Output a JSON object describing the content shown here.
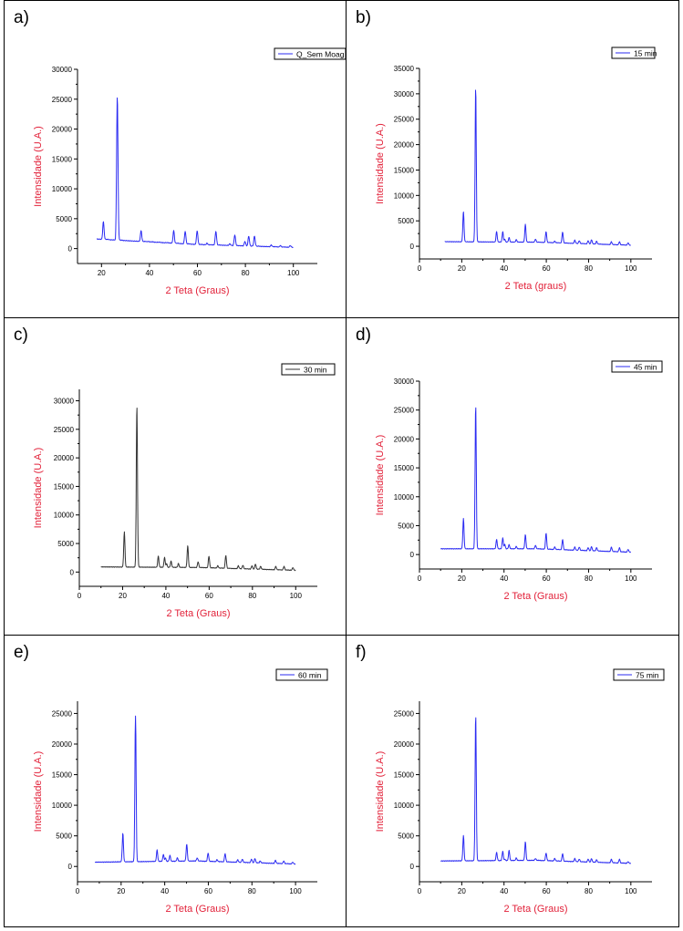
{
  "colors": {
    "blue": "#2b2bf2",
    "gray": "#333333",
    "axis_label": "#e2223a",
    "axis": "#000000"
  },
  "chart_data": [
    {
      "panel_label": "a)",
      "type": "line",
      "legend": "Q_Sem Moag",
      "color": "blue",
      "xlabel": "2 Teta (Graus)",
      "ylabel": "Intensidade (U.A.)",
      "xlim": [
        10,
        110
      ],
      "xticks": [
        20,
        40,
        60,
        80,
        100
      ],
      "ylim": [
        -2500,
        30000
      ],
      "yticks": [
        0,
        5000,
        10000,
        15000,
        20000,
        25000,
        30000
      ],
      "x_start": 18,
      "x_end": 100,
      "bg_start": 1600,
      "bg_mid": 700,
      "bg_end": 200,
      "peaks": [
        [
          20.8,
          4500
        ],
        [
          26.6,
          25600
        ],
        [
          36.5,
          3000
        ],
        [
          39.5,
          1200
        ],
        [
          42.4,
          900
        ],
        [
          45.8,
          800
        ],
        [
          50.1,
          3000
        ],
        [
          54.9,
          2900
        ],
        [
          59.9,
          3000
        ],
        [
          64.0,
          900
        ],
        [
          67.7,
          2900
        ],
        [
          73.5,
          800
        ],
        [
          75.6,
          2300
        ],
        [
          79.8,
          1200
        ],
        [
          81.4,
          2100
        ],
        [
          83.8,
          2100
        ],
        [
          90.8,
          600
        ],
        [
          94.6,
          500
        ],
        [
          98.7,
          500
        ]
      ]
    },
    {
      "panel_label": "b)",
      "type": "line",
      "legend": "15 min",
      "color": "blue",
      "xlabel": "2 Teta (graus)",
      "ylabel": "Intensidade (U.A.)",
      "xlim": [
        0,
        110
      ],
      "xticks": [
        0,
        20,
        40,
        60,
        80,
        100
      ],
      "ylim": [
        -2500,
        35000
      ],
      "yticks": [
        0,
        5000,
        10000,
        15000,
        20000,
        25000,
        30000,
        35000
      ],
      "x_start": 12,
      "x_end": 100,
      "bg_start": 900,
      "bg_mid": 800,
      "bg_end": 200,
      "peaks": [
        [
          20.8,
          6800
        ],
        [
          26.6,
          31200
        ],
        [
          36.5,
          2900
        ],
        [
          39.4,
          2900
        ],
        [
          40.3,
          1400
        ],
        [
          42.4,
          1700
        ],
        [
          45.8,
          1300
        ],
        [
          50.1,
          4300
        ],
        [
          54.9,
          1400
        ],
        [
          59.9,
          2900
        ],
        [
          64.0,
          1000
        ],
        [
          67.7,
          2800
        ],
        [
          73.5,
          1200
        ],
        [
          75.6,
          1100
        ],
        [
          79.8,
          1100
        ],
        [
          81.4,
          1300
        ],
        [
          83.8,
          1000
        ],
        [
          90.8,
          900
        ],
        [
          94.6,
          900
        ],
        [
          98.7,
          700
        ]
      ]
    },
    {
      "panel_label": "c)",
      "type": "line",
      "legend": "30 min",
      "color": "gray",
      "xlabel": "2 Teta (Graus)",
      "ylabel": "Intensidade (U.A.)",
      "xlim": [
        0,
        110
      ],
      "xticks": [
        0,
        20,
        40,
        60,
        80,
        100
      ],
      "ylim": [
        -2500,
        32000
      ],
      "yticks": [
        0,
        5000,
        10000,
        15000,
        20000,
        25000,
        30000
      ],
      "x_start": 10,
      "x_end": 100,
      "bg_start": 900,
      "bg_mid": 800,
      "bg_end": 300,
      "peaks": [
        [
          20.8,
          7000
        ],
        [
          26.6,
          29200
        ],
        [
          36.5,
          2800
        ],
        [
          39.4,
          2600
        ],
        [
          40.3,
          1500
        ],
        [
          42.4,
          1900
        ],
        [
          45.8,
          1500
        ],
        [
          50.1,
          4600
        ],
        [
          54.9,
          1800
        ],
        [
          59.9,
          2800
        ],
        [
          64.0,
          1100
        ],
        [
          67.7,
          2900
        ],
        [
          73.5,
          1100
        ],
        [
          75.6,
          1200
        ],
        [
          79.8,
          1100
        ],
        [
          81.4,
          1400
        ],
        [
          83.8,
          1000
        ],
        [
          90.8,
          1000
        ],
        [
          94.6,
          1000
        ],
        [
          98.7,
          800
        ]
      ]
    },
    {
      "panel_label": "d)",
      "type": "line",
      "legend": "45 min",
      "color": "blue",
      "xlabel": "2 Teta (Graus)",
      "ylabel": "Intensidade (U.A.)",
      "xlim": [
        0,
        110
      ],
      "xticks": [
        0,
        20,
        40,
        60,
        80,
        100
      ],
      "ylim": [
        -2500,
        30000
      ],
      "yticks": [
        0,
        5000,
        10000,
        15000,
        20000,
        25000,
        30000
      ],
      "x_start": 10,
      "x_end": 100,
      "bg_start": 1000,
      "bg_mid": 1000,
      "bg_end": 400,
      "peaks": [
        [
          20.8,
          6200
        ],
        [
          26.6,
          25800
        ],
        [
          36.5,
          2600
        ],
        [
          39.4,
          2900
        ],
        [
          40.3,
          1800
        ],
        [
          42.4,
          1700
        ],
        [
          45.8,
          1400
        ],
        [
          50.1,
          3400
        ],
        [
          54.9,
          1600
        ],
        [
          59.9,
          3700
        ],
        [
          64.0,
          1300
        ],
        [
          67.7,
          2600
        ],
        [
          73.5,
          1300
        ],
        [
          75.6,
          1300
        ],
        [
          79.8,
          1200
        ],
        [
          81.4,
          1400
        ],
        [
          83.8,
          1200
        ],
        [
          90.8,
          1300
        ],
        [
          94.6,
          1200
        ],
        [
          98.7,
          900
        ]
      ]
    },
    {
      "panel_label": "e)",
      "type": "line",
      "legend": "60 min",
      "color": "blue",
      "xlabel": "2 Teta (Graus)",
      "ylabel": "Intensidade (U.A.)",
      "xlim": [
        0,
        110
      ],
      "xticks": [
        0,
        20,
        40,
        60,
        80,
        100
      ],
      "ylim": [
        -2500,
        27000
      ],
      "yticks": [
        0,
        5000,
        10000,
        15000,
        20000,
        25000
      ],
      "x_start": 8,
      "x_end": 100,
      "bg_start": 700,
      "bg_mid": 900,
      "bg_end": 400,
      "peaks": [
        [
          20.8,
          5400
        ],
        [
          26.6,
          24600
        ],
        [
          36.5,
          2700
        ],
        [
          39.4,
          2000
        ],
        [
          40.3,
          1400
        ],
        [
          42.4,
          1800
        ],
        [
          45.8,
          1400
        ],
        [
          50.1,
          3600
        ],
        [
          54.9,
          1400
        ],
        [
          59.9,
          2200
        ],
        [
          64.0,
          1100
        ],
        [
          67.7,
          2100
        ],
        [
          73.5,
          1100
        ],
        [
          75.6,
          1200
        ],
        [
          79.8,
          1200
        ],
        [
          81.4,
          1300
        ],
        [
          83.8,
          900
        ],
        [
          90.8,
          1000
        ],
        [
          94.6,
          900
        ],
        [
          98.7,
          700
        ]
      ]
    },
    {
      "panel_label": "f)",
      "type": "line",
      "legend": "75 min",
      "color": "blue",
      "xlabel": "2 Teta (Graus)",
      "ylabel": "Intensidade (U.A.)",
      "xlim": [
        0,
        110
      ],
      "xticks": [
        0,
        20,
        40,
        60,
        80,
        100
      ],
      "ylim": [
        -2500,
        27000
      ],
      "yticks": [
        0,
        5000,
        10000,
        15000,
        20000,
        25000
      ],
      "x_start": 10,
      "x_end": 100,
      "bg_start": 900,
      "bg_mid": 1000,
      "bg_end": 500,
      "peaks": [
        [
          20.8,
          5000
        ],
        [
          26.6,
          24700
        ],
        [
          36.5,
          2300
        ],
        [
          39.4,
          2500
        ],
        [
          40.3,
          1200
        ],
        [
          42.4,
          2600
        ],
        [
          45.8,
          1400
        ],
        [
          50.1,
          4000
        ],
        [
          54.9,
          1300
        ],
        [
          59.9,
          2200
        ],
        [
          64.0,
          1300
        ],
        [
          67.7,
          2100
        ],
        [
          73.5,
          1300
        ],
        [
          75.6,
          1200
        ],
        [
          79.8,
          1200
        ],
        [
          81.4,
          1300
        ],
        [
          83.8,
          1100
        ],
        [
          90.8,
          1200
        ],
        [
          94.6,
          1200
        ],
        [
          98.7,
          800
        ]
      ]
    }
  ]
}
